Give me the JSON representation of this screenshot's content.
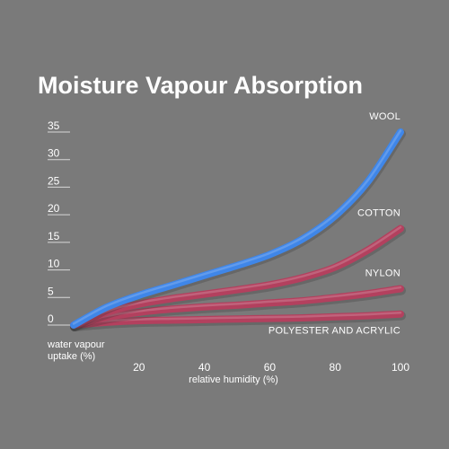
{
  "chart_data": {
    "type": "line",
    "title": "Moisture Vapour Absorption",
    "xlabel": "relative humidity (%)",
    "ylabel": "water vapour uptake (%)",
    "xlim": [
      0,
      100
    ],
    "ylim": [
      0,
      35
    ],
    "xticks": [
      "20",
      "40",
      "60",
      "80",
      "100"
    ],
    "yticks": [
      "0",
      "5",
      "10",
      "15",
      "20",
      "25",
      "30",
      "35"
    ],
    "grid": false,
    "legend": "inline labels at line ends",
    "series": [
      {
        "name": "WOOL",
        "color": "#3f86e8",
        "x": [
          0,
          10,
          20,
          30,
          40,
          50,
          60,
          70,
          80,
          90,
          100
        ],
        "y": [
          0,
          3.2,
          5.4,
          7.2,
          9.0,
          10.8,
          12.8,
          15.6,
          19.8,
          26.0,
          35.0
        ]
      },
      {
        "name": "COTTON",
        "color": "#b3405e",
        "x": [
          0,
          10,
          20,
          30,
          40,
          50,
          60,
          70,
          80,
          90,
          100
        ],
        "y": [
          0,
          2.3,
          3.8,
          4.8,
          5.6,
          6.4,
          7.3,
          8.6,
          10.5,
          13.6,
          17.5
        ]
      },
      {
        "name": "NYLON",
        "color": "#b3405e",
        "x": [
          0,
          10,
          20,
          30,
          40,
          50,
          60,
          70,
          80,
          90,
          100
        ],
        "y": [
          0,
          1.4,
          2.3,
          2.9,
          3.3,
          3.6,
          4.0,
          4.4,
          5.0,
          5.7,
          6.6
        ]
      },
      {
        "name": "POLYESTER AND ACRYLIC",
        "color": "#b3405e",
        "x": [
          0,
          10,
          20,
          30,
          40,
          50,
          60,
          70,
          80,
          90,
          100
        ],
        "y": [
          0,
          0.5,
          0.8,
          0.9,
          1.0,
          1.1,
          1.2,
          1.3,
          1.5,
          1.7,
          2.0
        ]
      }
    ]
  }
}
